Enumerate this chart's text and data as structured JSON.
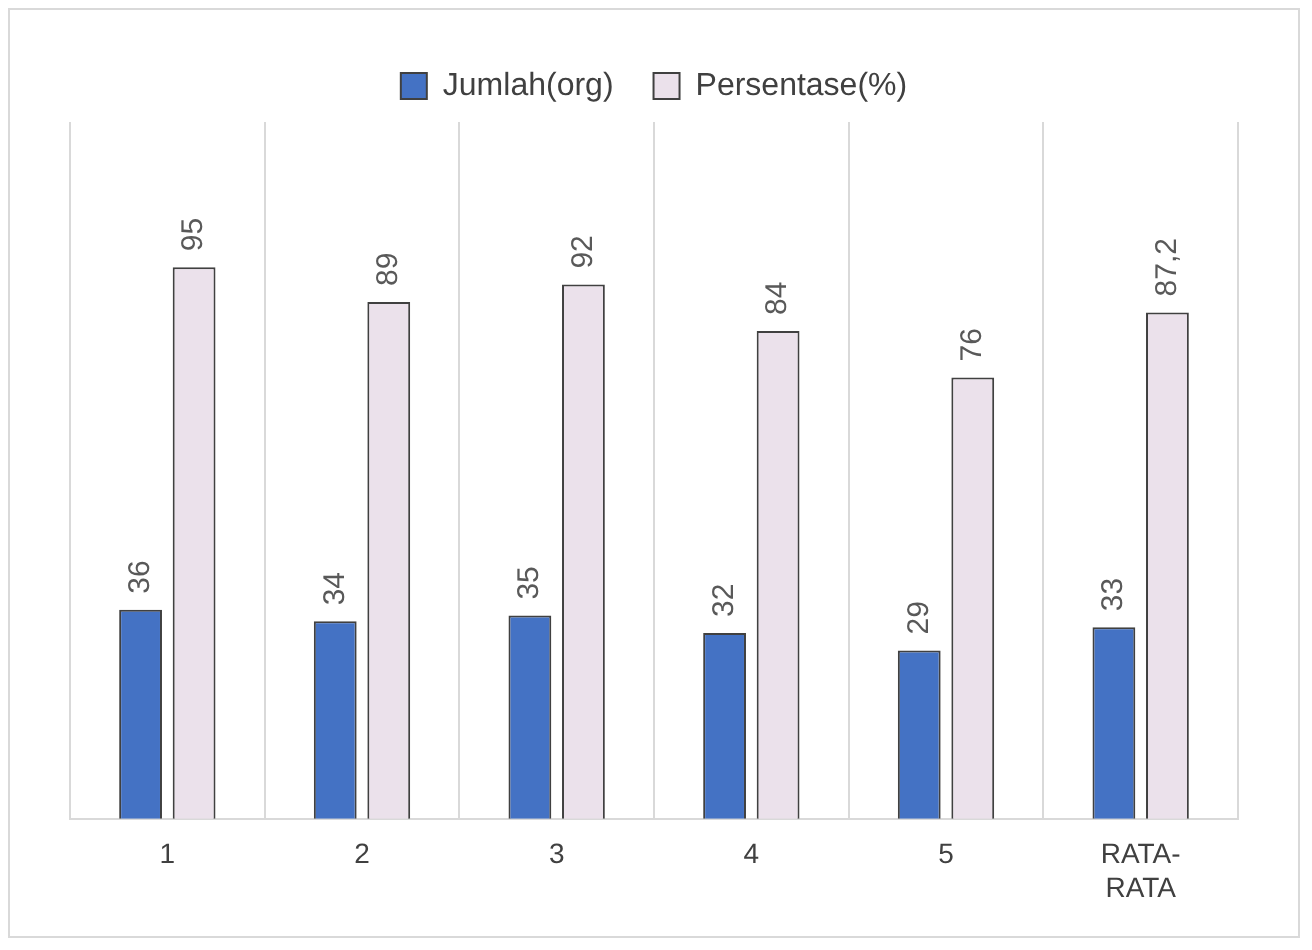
{
  "chart_data": {
    "type": "bar",
    "categories": [
      "1",
      "2",
      "3",
      "4",
      "5",
      "RATA-RATA"
    ],
    "series": [
      {
        "name": "Jumlah(org)",
        "color": "#4472c4",
        "values": [
          36,
          34,
          35,
          32,
          29,
          33
        ],
        "value_labels": [
          "36",
          "34",
          "35",
          "32",
          "29",
          "33"
        ]
      },
      {
        "name": "Persentase(%)",
        "color": "#ebe1eb",
        "values": [
          95,
          89,
          92,
          84,
          76,
          87.2
        ],
        "value_labels": [
          "95",
          "89",
          "92",
          "84",
          "76",
          "87,2"
        ]
      }
    ],
    "grid": "x",
    "legend": "top"
  }
}
